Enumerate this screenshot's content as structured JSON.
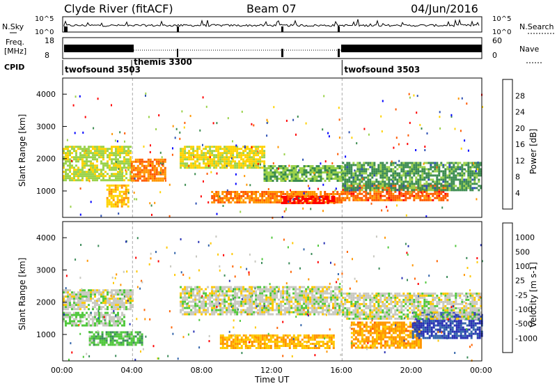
{
  "header": {
    "station": "Clyde River (fitACF)",
    "beam": "Beam 07",
    "date": "04/Jun/2016"
  },
  "noise_panel": {
    "left_label": "N.Sky",
    "right_label": "N.Search",
    "left_ticks": [
      "10^5",
      "10^0"
    ],
    "right_ticks": [
      "10^5",
      "10^0"
    ]
  },
  "freq_panel": {
    "left_label_1": "Freq.",
    "left_label_2": "[MHz]",
    "right_label": "Nave",
    "left_ticks": [
      "18",
      "8"
    ],
    "right_ticks": [
      "60",
      "0"
    ]
  },
  "cpid": {
    "label": "CPID",
    "segments": [
      {
        "name": "twofsound 3503",
        "start_hour": 0.0
      },
      {
        "name": "themis 3300",
        "start_hour": 3.95
      },
      {
        "name": "twofsound 3503",
        "start_hour": 16.0
      }
    ]
  },
  "power_panel": {
    "ylabel": "Slant Range [km]",
    "colorbar_label": "Power [dB]",
    "colorbar_ticks": [
      "28",
      "24",
      "20",
      "16",
      "12",
      "8",
      "4"
    ],
    "colorbar_colors": [
      "#ff0000",
      "#ff5a00",
      "#ff9600",
      "#ffd200",
      "#9bd24b",
      "#3c8c50",
      "#2d50b4",
      "#0000ff"
    ]
  },
  "velocity_panel": {
    "ylabel": "Slant Range [km]",
    "colorbar_label": "Velocity [m s-1]",
    "colorbar_ticks": [
      "1000",
      "500",
      "100",
      "25",
      "-25",
      "-100",
      "-500",
      "-1000"
    ],
    "colorbar_colors": [
      "#2832b4",
      "#3264aa",
      "#3c8c5a",
      "#50c83c",
      "#c8c8c0",
      "#ffc800",
      "#ff9600",
      "#ff6400",
      "#ff0000"
    ]
  },
  "x_axis": {
    "label": "Time UT",
    "ticks": [
      "00:00",
      "04:00",
      "08:00",
      "12:00",
      "16:00",
      "20:00",
      "00:00"
    ]
  },
  "chart_data": {
    "type": "heatmap",
    "title": "Clyde River (fitACF)  Beam 07  04/Jun/2016",
    "xlabel": "Time UT",
    "ylabel": "Slant Range [km]",
    "xlim_hours": [
      0,
      24
    ],
    "ylim_km": [
      180,
      4500
    ],
    "yticks": [
      1000,
      2000,
      3000,
      4000
    ],
    "panels": [
      {
        "name": "Power [dB]",
        "color_range": [
          0,
          30
        ],
        "bands": [
          {
            "t_start": 0.0,
            "t_end": 3.9,
            "range_start": 1300,
            "range_end": 2400,
            "value": 14
          },
          {
            "t_start": 3.9,
            "t_end": 5.9,
            "range_start": 1300,
            "range_end": 2000,
            "value": 22
          },
          {
            "t_start": 6.7,
            "t_end": 11.5,
            "range_start": 1700,
            "range_end": 2400,
            "value": 16
          },
          {
            "t_start": 11.5,
            "t_end": 16.0,
            "range_start": 1300,
            "range_end": 1800,
            "value": 12
          },
          {
            "t_start": 8.5,
            "t_end": 16.0,
            "range_start": 650,
            "range_end": 1000,
            "value": 22
          },
          {
            "t_start": 12.5,
            "t_end": 15.5,
            "range_start": 650,
            "range_end": 850,
            "value": 28
          },
          {
            "t_start": 16.0,
            "t_end": 22.0,
            "range_start": 700,
            "range_end": 1200,
            "value": 24
          },
          {
            "t_start": 16.0,
            "t_end": 24.0,
            "range_start": 1000,
            "range_end": 1900,
            "value": 10
          },
          {
            "t_start": 2.5,
            "t_end": 3.8,
            "range_start": 500,
            "range_end": 1200,
            "value": 18
          }
        ]
      },
      {
        "name": "Velocity [m s-1]",
        "color_range": [
          -1000,
          1000
        ],
        "bands": [
          {
            "t_start": 0.0,
            "t_end": 4.0,
            "range_start": 1800,
            "range_end": 2400,
            "value": 0
          },
          {
            "t_start": 0.0,
            "t_end": 3.5,
            "range_start": 1300,
            "range_end": 1700,
            "value": 100
          },
          {
            "t_start": 1.5,
            "t_end": 4.5,
            "range_start": 700,
            "range_end": 1100,
            "value": 250
          },
          {
            "t_start": 6.7,
            "t_end": 16.0,
            "range_start": 1600,
            "range_end": 2500,
            "value": 0
          },
          {
            "t_start": 9.0,
            "t_end": 15.5,
            "range_start": 600,
            "range_end": 1000,
            "value": -300
          },
          {
            "t_start": 16.5,
            "t_end": 20.5,
            "range_start": 600,
            "range_end": 1400,
            "value": -400
          },
          {
            "t_start": 20.0,
            "t_end": 24.0,
            "range_start": 900,
            "range_end": 1700,
            "value": 800
          },
          {
            "t_start": 16.0,
            "t_end": 24.0,
            "range_start": 1500,
            "range_end": 2300,
            "value": 0
          }
        ]
      }
    ]
  }
}
